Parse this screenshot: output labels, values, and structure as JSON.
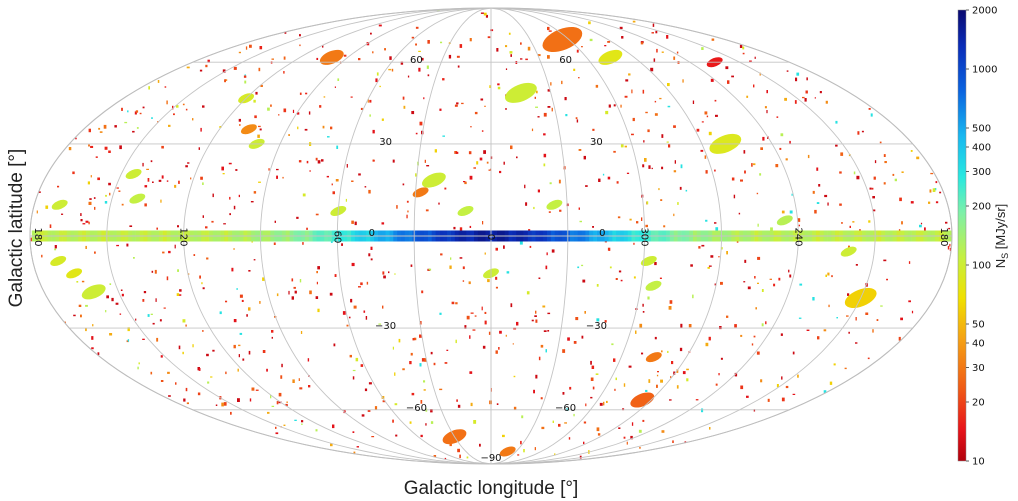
{
  "chart_data": {
    "type": "heatmap",
    "projection": "mollweide",
    "xlabel": "Galactic longitude [°]",
    "ylabel": "Galactic latitude [°]",
    "colorbar": {
      "label": "N_S [MJy/sr]",
      "label_text": "N",
      "label_sub": "S",
      "label_tail": " [MJy/sr]",
      "scale": "log",
      "range": [
        10,
        2000
      ],
      "ticks": [
        10,
        20,
        30,
        40,
        50,
        100,
        200,
        300,
        400,
        500,
        1000,
        2000
      ],
      "tick_labels": [
        "10",
        "20",
        "30",
        "40",
        "50",
        "100",
        "200",
        "300",
        "400",
        "500",
        "1000",
        "2000"
      ]
    },
    "longitude_labels": [
      {
        "lon": 180,
        "text": "180"
      },
      {
        "lon": 120,
        "text": "120"
      },
      {
        "lon": 60,
        "text": "60"
      },
      {
        "lon": 0,
        "text": "0"
      },
      {
        "lon": 300,
        "text": "300"
      },
      {
        "lon": 240,
        "text": "240"
      },
      {
        "lon": -180,
        "text": "180"
      }
    ],
    "latitude_labels": [
      {
        "lat": 60,
        "text": "60"
      },
      {
        "lat": 30,
        "text": "30"
      },
      {
        "lat": 0,
        "text": "0"
      },
      {
        "lat": -30,
        "text": "−30"
      },
      {
        "lat": -60,
        "text": "−60"
      },
      {
        "lat": -90,
        "text": "−90"
      }
    ],
    "galactic_plane": {
      "description": "continuous band along latitude 0",
      "center_value": 1500,
      "edge_value": 110
    },
    "regions": [
      {
        "lon": 23,
        "lat": 18,
        "value": 100,
        "size": 3
      },
      {
        "lon": 28,
        "lat": 14,
        "value": 30,
        "size": 2
      },
      {
        "lon": 10,
        "lat": 8,
        "value": 110,
        "size": 2
      },
      {
        "lon": 160,
        "lat": -18,
        "value": 100,
        "size": 3
      },
      {
        "lon": 165,
        "lat": -12,
        "value": 80,
        "size": 2
      },
      {
        "lon": 140,
        "lat": 12,
        "value": 110,
        "size": 2
      },
      {
        "lon": 145,
        "lat": 20,
        "value": 100,
        "size": 2
      },
      {
        "lon": 100,
        "lat": 30,
        "value": 100,
        "size": 2
      },
      {
        "lon": 107,
        "lat": 35,
        "value": 35,
        "size": 2
      },
      {
        "lon": 120,
        "lat": 46,
        "value": 90,
        "size": 2
      },
      {
        "lon": 100,
        "lat": 62,
        "value": 30,
        "size": 3
      },
      {
        "lon": -15,
        "lat": 48,
        "value": 100,
        "size": 4
      },
      {
        "lon": -55,
        "lat": 70,
        "value": 28,
        "size": 5
      },
      {
        "lon": -75,
        "lat": 62,
        "value": 80,
        "size": 3
      },
      {
        "lon": -100,
        "lat": 30,
        "value": 85,
        "size": 4
      },
      {
        "lon": -150,
        "lat": -20,
        "value": 60,
        "size": 4
      },
      {
        "lon": -85,
        "lat": -56,
        "value": 25,
        "size": 3
      },
      {
        "lon": -75,
        "lat": -40,
        "value": 30,
        "size": 2
      },
      {
        "lon": 30,
        "lat": -72,
        "value": 28,
        "size": 3
      },
      {
        "lon": -20,
        "lat": -80,
        "value": 30,
        "size": 2
      },
      {
        "lon": -62,
        "lat": -8,
        "value": 100,
        "size": 2
      },
      {
        "lon": -65,
        "lat": -16,
        "value": 110,
        "size": 2
      },
      {
        "lon": -140,
        "lat": -5,
        "value": 100,
        "size": 2
      },
      {
        "lon": 0,
        "lat": -12,
        "value": 100,
        "size": 2
      },
      {
        "lon": 60,
        "lat": 8,
        "value": 100,
        "size": 2
      },
      {
        "lon": -25,
        "lat": 10,
        "value": 110,
        "size": 2
      },
      {
        "lon": -115,
        "lat": 5,
        "value": 120,
        "size": 2
      },
      {
        "lon": 170,
        "lat": 10,
        "value": 100,
        "size": 2
      },
      {
        "lon": -135,
        "lat": 60,
        "value": 15,
        "size": 2
      },
      {
        "lon": 170,
        "lat": -8,
        "value": 90,
        "size": 2
      }
    ]
  }
}
